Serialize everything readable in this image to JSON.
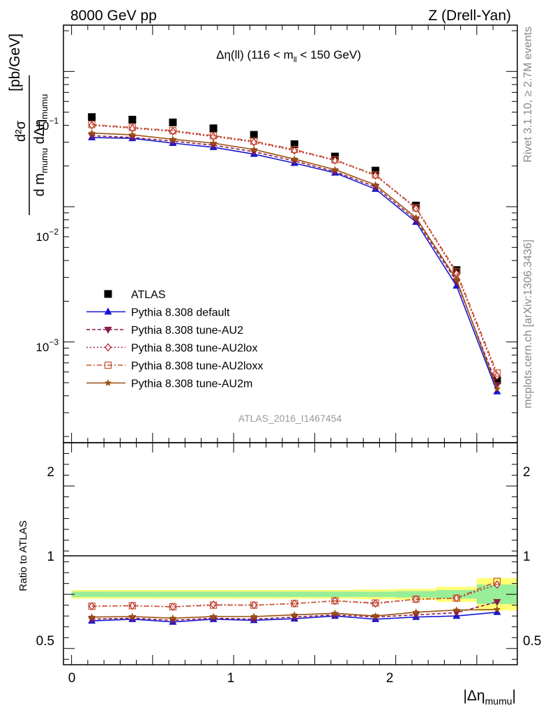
{
  "header": {
    "left": "8000 GeV pp",
    "right": "Z (Drell-Yan)"
  },
  "side_labels": {
    "rivet": "Rivet 3.1.10, ≥ 2.7M events",
    "mcplots": "mcplots.cern.ch [arXiv:1306.3436]"
  },
  "main_plot": {
    "title_main": "Δη(ll) (116 < m",
    "title_sub": "ll",
    "title_tail": " < 150 GeV)",
    "watermark": "ATLAS_2016_I1467454",
    "ylabel_unit": "[pb/GeV]",
    "ylabel_num": "d²σ",
    "ylabel_den": "d m",
    "ylabel_den_sub": "mumu",
    "ylabel_den2": " dΔη",
    "ylabel_den2_sub": "mumu",
    "ytick_base": "10",
    "ytick_exps": [
      "−1",
      "−2",
      "−3"
    ]
  },
  "ratio_plot": {
    "ylabel": "Ratio to ATLAS",
    "yticks": [
      "2",
      "1",
      "0.5"
    ]
  },
  "xaxis": {
    "label": "|Δη",
    "label_sub": "mumu",
    "label_tail": "|",
    "ticks": [
      "0",
      "1",
      "2"
    ]
  },
  "legend": {
    "entries": [
      "ATLAS",
      "Pythia 8.308 default",
      "Pythia 8.308 tune-AU2",
      "Pythia 8.308 tune-AU2lox",
      "Pythia 8.308 tune-AU2loxx",
      "Pythia 8.308 tune-AU2m"
    ]
  },
  "colors": {
    "data": "#000000",
    "default": "#1515d0",
    "au2": "#8b1a4a",
    "au2lox": "#b01c2e",
    "au2loxx": "#c8502a",
    "au2m": "#9a5010",
    "band_green": "#99ee99",
    "band_yellow": "#ffff77"
  },
  "chart_data": [
    {
      "type": "scatter",
      "name": "main",
      "yscale": "log",
      "x": [
        0.125,
        0.375,
        0.625,
        0.875,
        1.125,
        1.375,
        1.625,
        1.875,
        2.125,
        2.375,
        2.625
      ],
      "xlim": [
        -0.05,
        2.75
      ],
      "ylim": [
        0.00018,
        0.22
      ],
      "series": [
        {
          "name": "ATLAS",
          "values": [
            0.046,
            0.044,
            0.042,
            0.038,
            0.034,
            0.029,
            0.0235,
            0.0185,
            0.0102,
            0.0034,
            0.00052
          ]
        },
        {
          "name": "Pythia 8.308 default",
          "values": [
            0.0325,
            0.032,
            0.0295,
            0.0275,
            0.0245,
            0.021,
            0.0178,
            0.0135,
            0.0077,
            0.0026,
            0.00043
          ]
        },
        {
          "name": "Pythia 8.308 tune-AU2",
          "values": [
            0.0335,
            0.0325,
            0.0305,
            0.0285,
            0.0255,
            0.0218,
            0.0182,
            0.014,
            0.008,
            0.0028,
            0.00048
          ]
        },
        {
          "name": "Pythia 8.308 tune-AU2lox",
          "values": [
            0.04,
            0.038,
            0.036,
            0.033,
            0.03,
            0.026,
            0.022,
            0.017,
            0.0097,
            0.0032,
            0.00056
          ]
        },
        {
          "name": "Pythia 8.308 tune-AU2loxx",
          "values": [
            0.0405,
            0.0385,
            0.0365,
            0.0335,
            0.0305,
            0.0265,
            0.0222,
            0.0172,
            0.0098,
            0.0033,
            0.00059
          ]
        },
        {
          "name": "Pythia 8.308 tune-AU2m",
          "values": [
            0.035,
            0.034,
            0.0315,
            0.0295,
            0.0265,
            0.0225,
            0.0188,
            0.0145,
            0.0083,
            0.0029,
            0.00045
          ]
        }
      ]
    },
    {
      "type": "scatter",
      "name": "ratio",
      "x": [
        0.125,
        0.375,
        0.625,
        0.875,
        1.125,
        1.375,
        1.625,
        1.875,
        2.125,
        2.375,
        2.625
      ],
      "xlim": [
        -0.05,
        2.75
      ],
      "ylim": [
        0.35,
        2.4
      ],
      "band": {
        "edges": [
          0,
          0.25,
          0.5,
          0.75,
          1.0,
          1.25,
          1.5,
          1.75,
          2.0,
          2.25,
          2.5,
          2.75
        ],
        "green": [
          0.025,
          0.025,
          0.025,
          0.025,
          0.025,
          0.025,
          0.025,
          0.025,
          0.03,
          0.04,
          0.09
        ],
        "yellow": [
          0.04,
          0.04,
          0.04,
          0.04,
          0.04,
          0.04,
          0.04,
          0.045,
          0.05,
          0.07,
          0.15
        ]
      },
      "series": [
        {
          "name": "Pythia 8.308 default",
          "values": [
            0.755,
            0.77,
            0.745,
            0.77,
            0.76,
            0.775,
            0.8,
            0.77,
            0.79,
            0.8,
            0.835
          ]
        },
        {
          "name": "Pythia 8.308 tune-AU2",
          "values": [
            0.77,
            0.78,
            0.76,
            0.78,
            0.77,
            0.79,
            0.81,
            0.79,
            0.81,
            0.83,
            0.93
          ]
        },
        {
          "name": "Pythia 8.308 tune-AU2lox",
          "values": [
            0.89,
            0.895,
            0.885,
            0.905,
            0.9,
            0.915,
            0.94,
            0.915,
            0.955,
            0.965,
            1.09
          ]
        },
        {
          "name": "Pythia 8.308 tune-AU2loxx",
          "values": [
            0.89,
            0.895,
            0.885,
            0.9,
            0.9,
            0.915,
            0.94,
            0.92,
            0.955,
            0.965,
            1.12
          ]
        },
        {
          "name": "Pythia 8.308 tune-AU2m",
          "values": [
            0.79,
            0.795,
            0.78,
            0.795,
            0.795,
            0.81,
            0.825,
            0.8,
            0.835,
            0.855,
            0.86
          ]
        }
      ]
    }
  ]
}
